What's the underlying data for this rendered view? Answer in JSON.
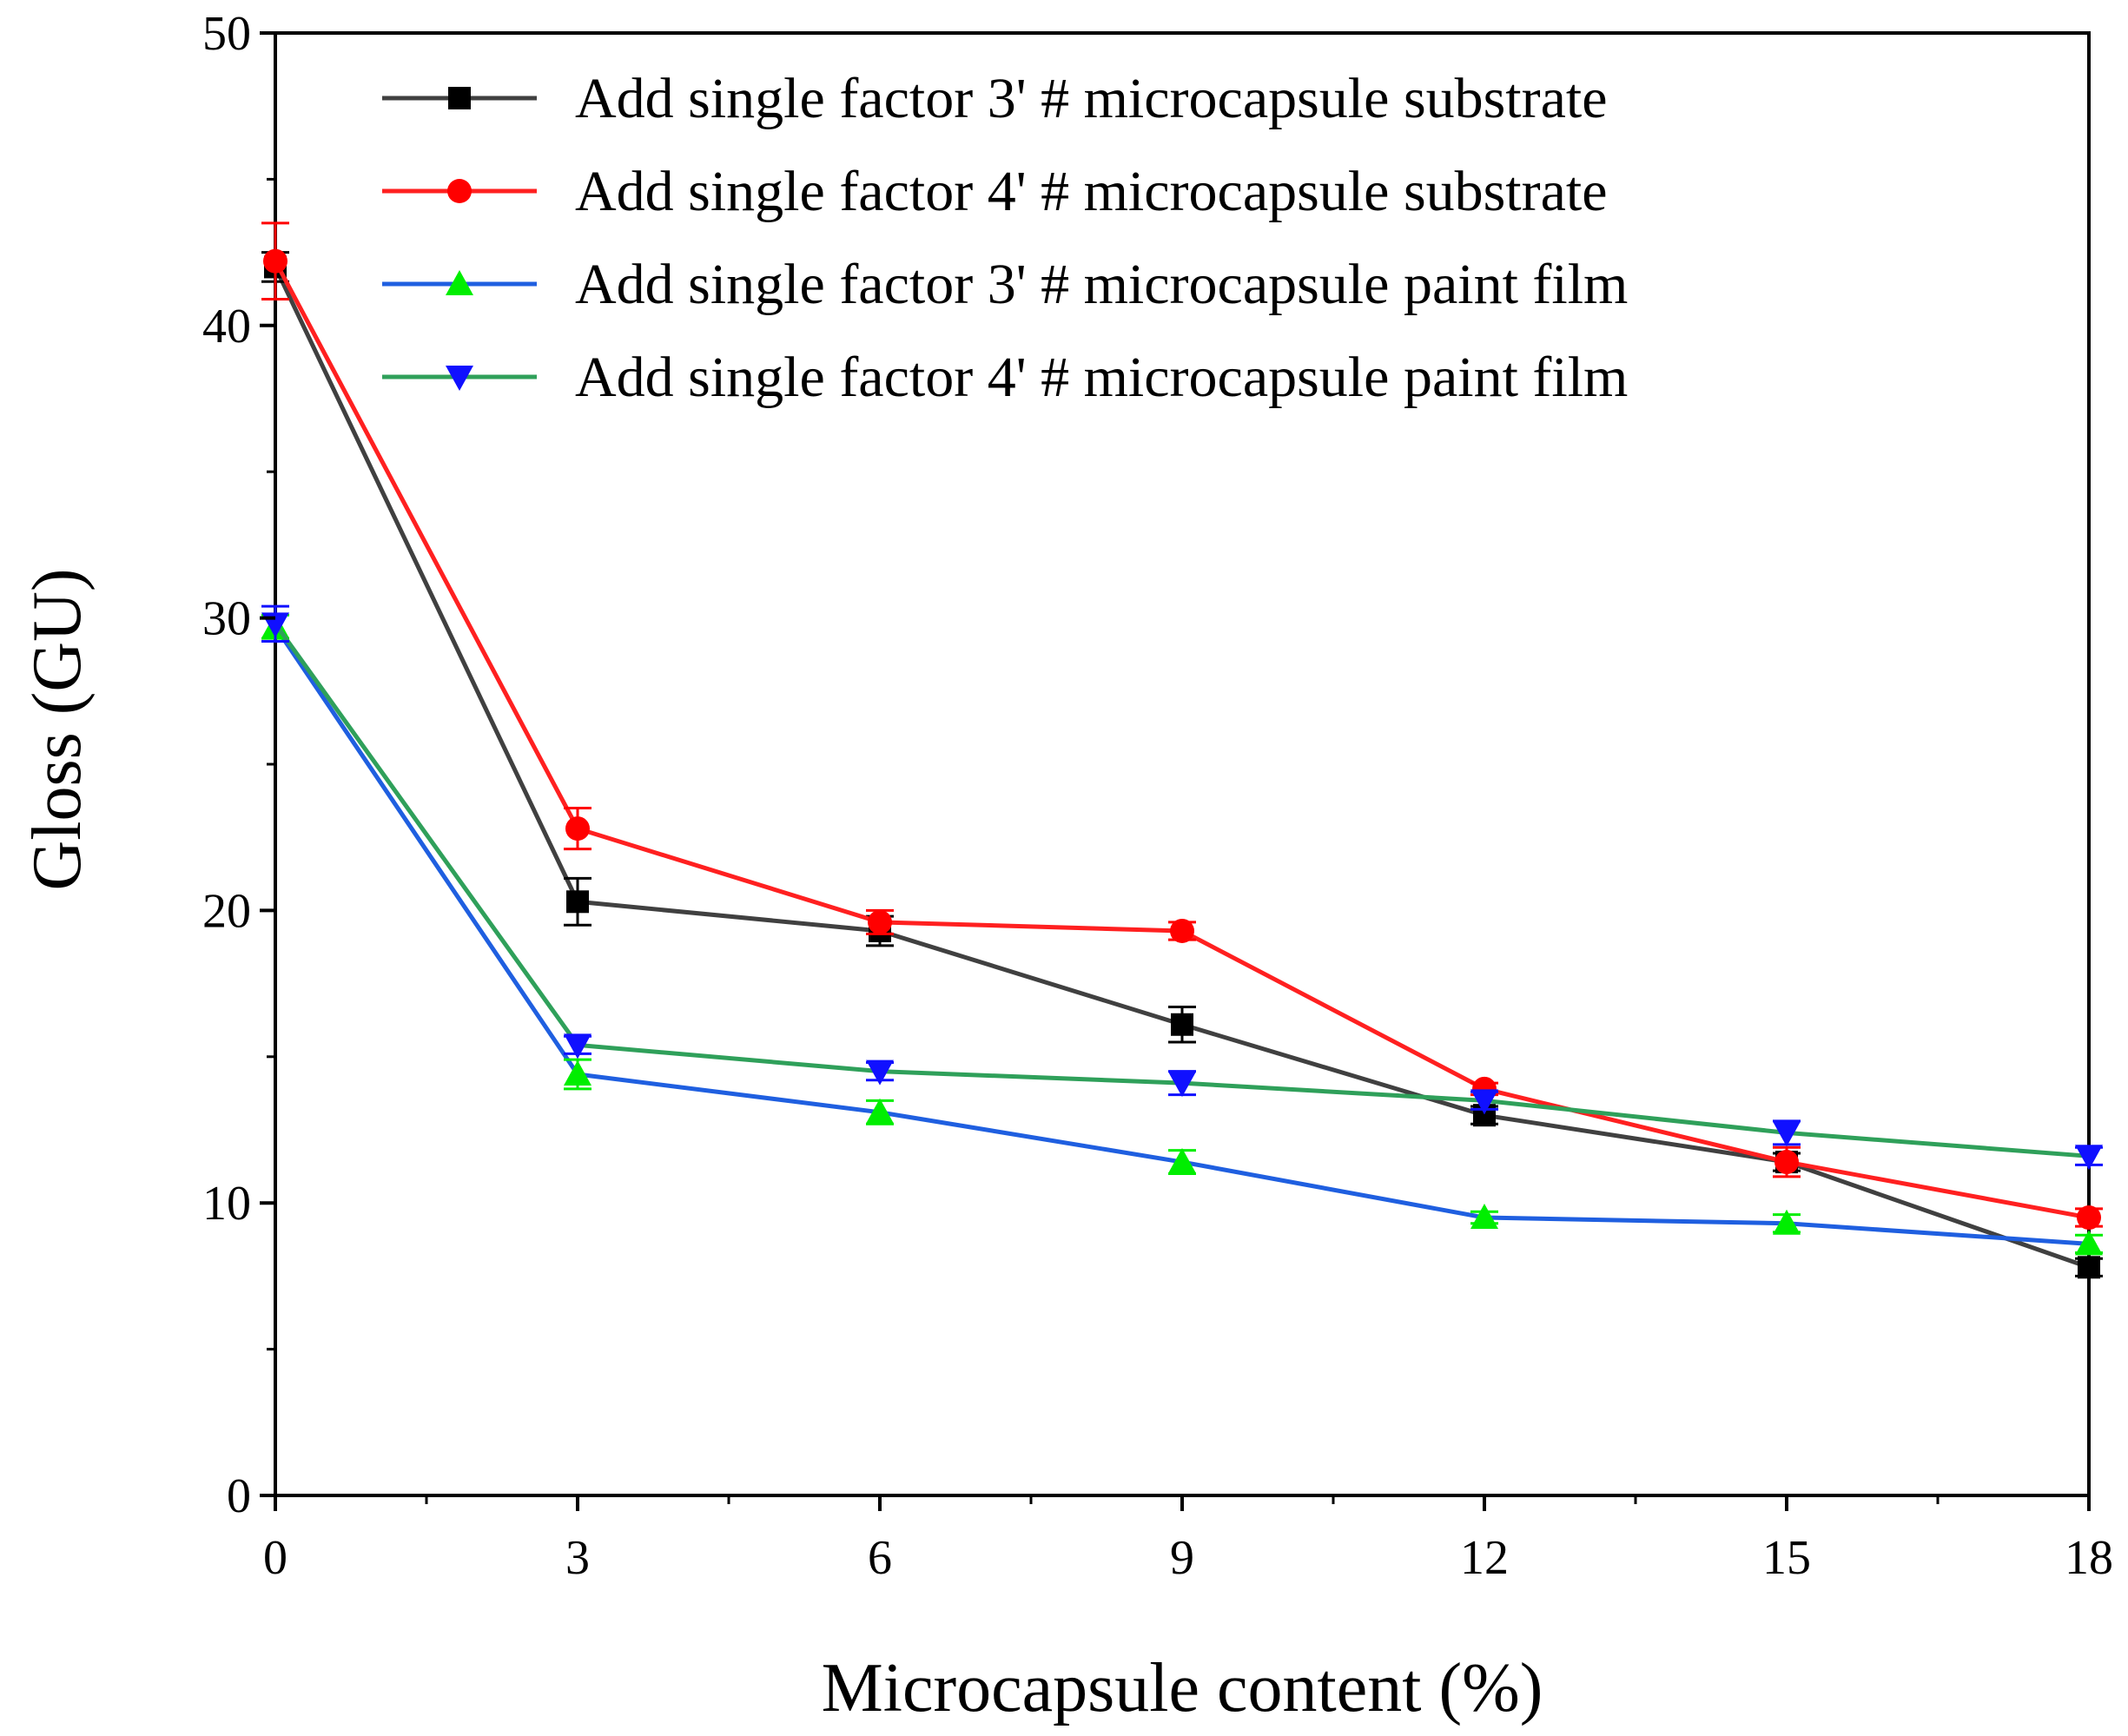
{
  "chart_data": {
    "type": "line",
    "title": "",
    "xlabel": "Microcapsule content (%)",
    "ylabel": "Gloss (GU)",
    "xlim": [
      0,
      18
    ],
    "ylim": [
      0,
      50
    ],
    "xticks": [
      0,
      3,
      6,
      9,
      12,
      15,
      18
    ],
    "yticks": [
      0,
      10,
      20,
      30,
      40,
      50
    ],
    "grid": false,
    "legend_position": "top-right",
    "x": [
      0,
      3,
      6,
      9,
      12,
      15,
      18
    ],
    "series": [
      {
        "name": "Add single factor 3' # microcapsule substrate",
        "line_color": "#404040",
        "marker_color": "#000000",
        "marker": "square",
        "values": [
          42.0,
          20.3,
          19.3,
          16.1,
          13.0,
          11.4,
          7.8
        ],
        "errors": [
          0.5,
          0.8,
          0.5,
          0.6,
          0.3,
          0.3,
          0.3
        ]
      },
      {
        "name": "Add single factor 4' # microcapsule substrate",
        "line_color": "#ff2020",
        "marker_color": "#ff0000",
        "marker": "circle",
        "values": [
          42.2,
          22.8,
          19.6,
          19.3,
          13.9,
          11.4,
          9.5
        ],
        "errors": [
          1.3,
          0.7,
          0.4,
          0.3,
          0.2,
          0.5,
          0.3
        ]
      },
      {
        "name": "Add single factor 3' # microcapsule paint film",
        "line_color": "#1f5fe0",
        "marker_color": "#00ee00",
        "marker": "triangle-up",
        "values": [
          29.7,
          14.4,
          13.1,
          11.4,
          9.5,
          9.3,
          8.6
        ],
        "errors": [
          0.4,
          0.5,
          0.4,
          0.4,
          0.2,
          0.3,
          0.3
        ]
      },
      {
        "name": "Add single factor 4' # microcapsule paint film",
        "line_color": "#2fa05a",
        "marker_color": "#1010ff",
        "marker": "triangle-down",
        "values": [
          29.8,
          15.4,
          14.5,
          14.1,
          13.5,
          12.4,
          11.6
        ],
        "errors": [
          0.6,
          0.3,
          0.3,
          0.4,
          0.3,
          0.4,
          0.3
        ]
      }
    ]
  }
}
